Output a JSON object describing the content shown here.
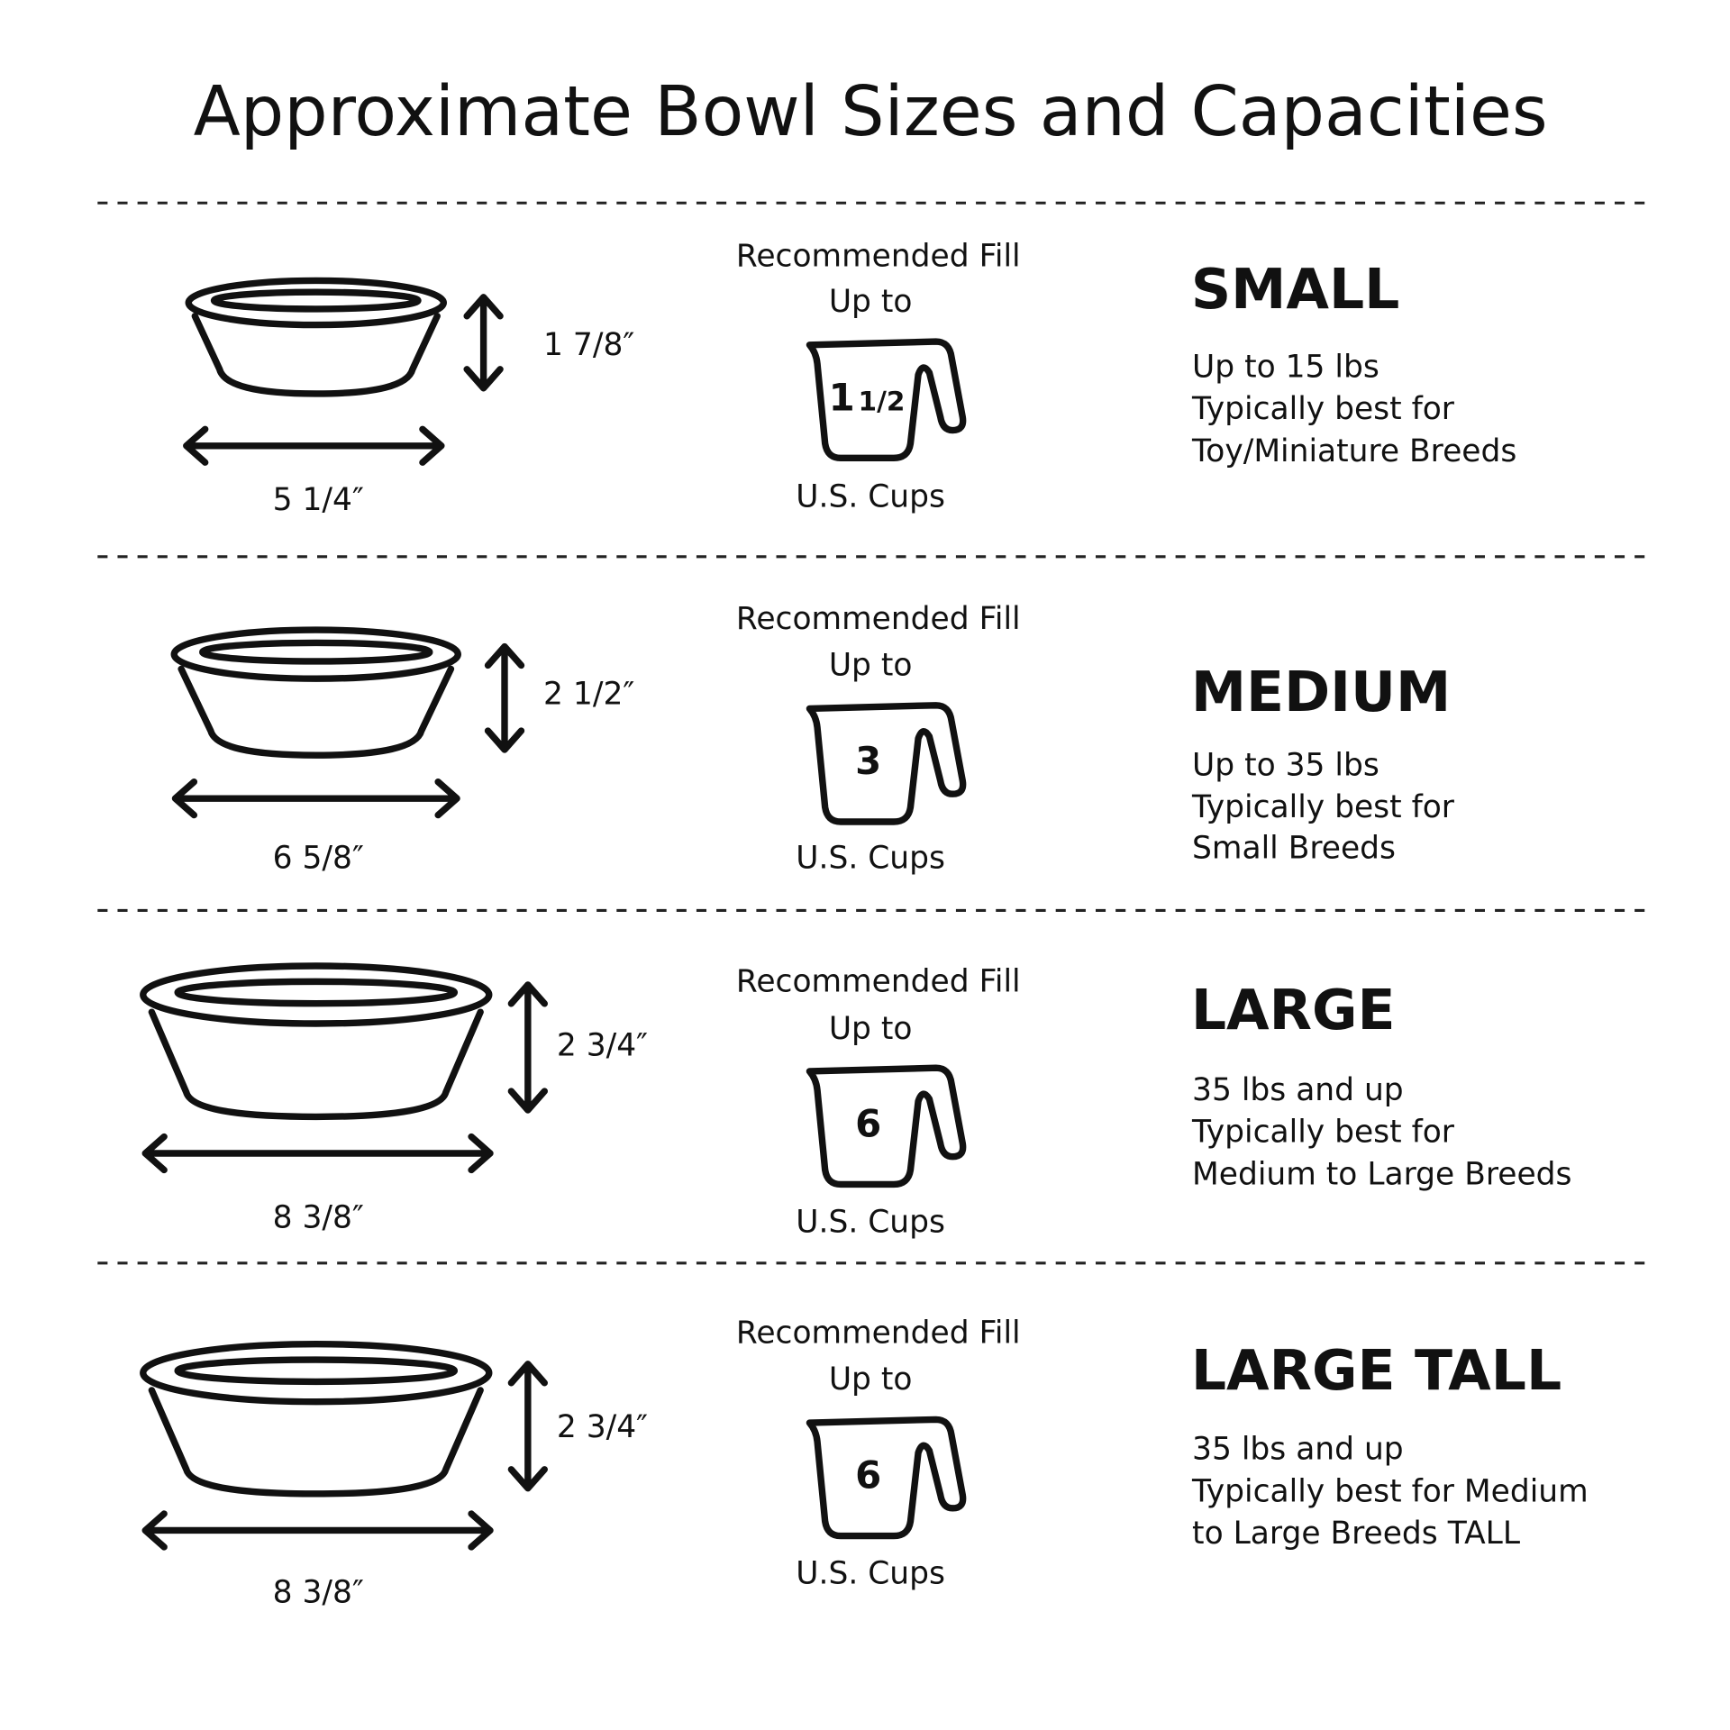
{
  "title": "Approximate Bowl Sizes and Capacities",
  "colors": {
    "ink": "#111111",
    "background": "#ffffff"
  },
  "rows": [
    {
      "size": "SMALL",
      "height": "1 7/8″",
      "width": "5 1/4″",
      "fill_label": "Recommended Fill",
      "up_to": "Up to",
      "cups": "1",
      "cups_fraction": "1/2",
      "unit": "U.S. Cups",
      "lines": [
        "Up to 15 lbs",
        "Typically best for",
        "Toy/Miniature Breeds"
      ]
    },
    {
      "size": "MEDIUM",
      "height": "2 1/2″",
      "width": "6 5/8″",
      "fill_label": "Recommended Fill",
      "up_to": "Up to",
      "cups": "3",
      "cups_fraction": "",
      "unit": "U.S. Cups",
      "lines": [
        "Up to 35 lbs",
        "Typically best for",
        "Small Breeds"
      ]
    },
    {
      "size": "LARGE",
      "height": "2 3/4″",
      "width": "8 3/8″",
      "fill_label": "Recommended Fill",
      "up_to": "Up to",
      "cups": "6",
      "cups_fraction": "",
      "unit": "U.S. Cups",
      "lines": [
        "35 lbs and up",
        "Typically best for",
        "Medium to Large Breeds"
      ]
    },
    {
      "size": "LARGE TALL",
      "height": "2 3/4″",
      "width": "8 3/8″",
      "fill_label": "Recommended Fill",
      "up_to": "Up to",
      "cups": "6",
      "cups_fraction": "",
      "unit": "U.S. Cups",
      "lines": [
        "35 lbs and up",
        "Typically best for Medium",
        "to Large Breeds TALL"
      ]
    }
  ]
}
